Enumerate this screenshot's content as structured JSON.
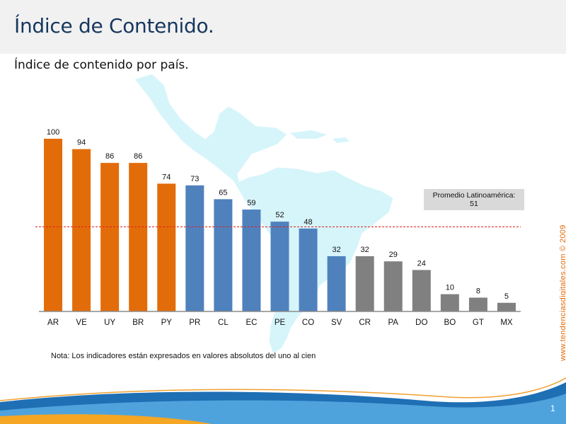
{
  "slide": {
    "title": "Índice de Contenido.",
    "subtitle": "Índice de contenido por país.",
    "note": "Nota: Los indicadores están expresados en valores absolutos del uno al cien",
    "side_credit": "www.tendenciasdigitales.com © 2009",
    "page_number": "1"
  },
  "average": {
    "label_line1": "Promedio Latinoamérica:",
    "label_line2": "51",
    "value": 51
  },
  "colors": {
    "orange": "#e36c0a",
    "blue": "#4f81bd",
    "gray": "#808080",
    "title": "#17375e",
    "map": "#d6f5fb",
    "avg_line": "#e0201b"
  },
  "chart_data": {
    "type": "bar",
    "title": "Índice de contenido por país.",
    "xlabel": "",
    "ylabel": "",
    "ylim": [
      0,
      100
    ],
    "categories": [
      "AR",
      "VE",
      "UY",
      "BR",
      "PY",
      "PR",
      "CL",
      "EC",
      "PE",
      "CO",
      "SV",
      "CR",
      "PA",
      "DO",
      "BO",
      "GT",
      "MX"
    ],
    "values": [
      100,
      94,
      86,
      86,
      74,
      73,
      65,
      59,
      52,
      48,
      32,
      32,
      29,
      24,
      10,
      8,
      5
    ],
    "bar_colors": [
      "orange",
      "orange",
      "orange",
      "orange",
      "orange",
      "blue",
      "blue",
      "blue",
      "blue",
      "blue",
      "blue",
      "gray",
      "gray",
      "gray",
      "gray",
      "gray",
      "gray"
    ],
    "reference_line": 51
  }
}
